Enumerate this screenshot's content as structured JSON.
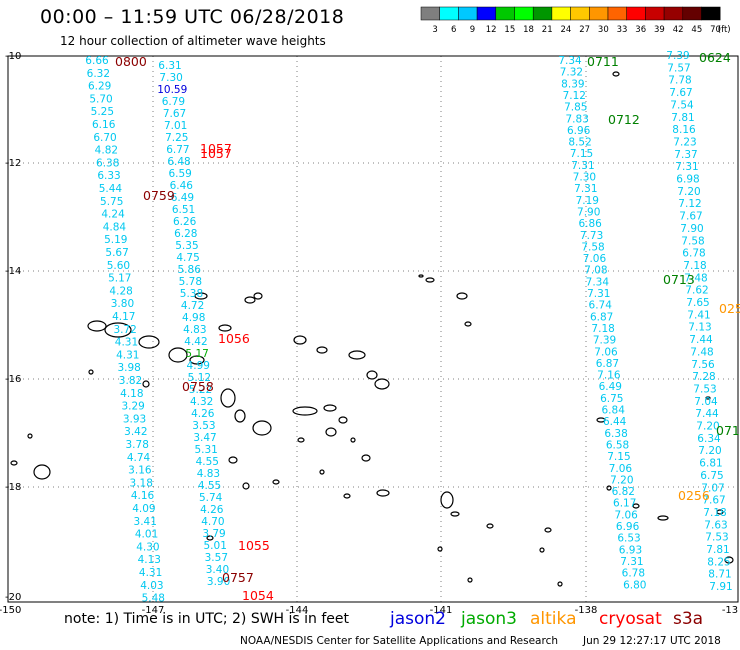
{
  "header": {
    "title": "00:00 – 11:59 UTC 06/28/2018",
    "subtitle": "12 hour collection of altimeter wave heights"
  },
  "colorbar": {
    "labels": [
      "3",
      "6",
      "9",
      "12",
      "15",
      "18",
      "21",
      "24",
      "27",
      "30",
      "33",
      "36",
      "39",
      "42",
      "45",
      "70",
      "(ft)"
    ],
    "colors": [
      "#7f7f7f",
      "#00ffff",
      "#00c8ff",
      "#0000ff",
      "#00c800",
      "#00ff00",
      "#009600",
      "#ffff00",
      "#ffc800",
      "#ff9600",
      "#ff6400",
      "#ff0000",
      "#c80000",
      "#960000",
      "#640000",
      "#000000"
    ]
  },
  "axes": {
    "lat_labels": [
      "-10",
      "-12",
      "-14",
      "-16",
      "-18",
      "-20"
    ],
    "lon_labels": [
      "-150",
      "-147",
      "-144",
      "-141",
      "-138",
      "-13"
    ]
  },
  "tracks": [
    {
      "name": "track-1",
      "color": "#00c8f0",
      "values": [
        "6.66",
        "6.32",
        "6.29",
        "5.70",
        "5.25",
        "6.16",
        "6.70",
        "4.82",
        "6.38",
        "6.33",
        "5.44",
        "5.75",
        "4.24",
        "4.84",
        "5.19",
        "5.67",
        "5.60",
        "5.17",
        "4.28",
        "3.80",
        "4.17",
        "3.72",
        "4.31",
        "4.31",
        "3.98",
        "3.82",
        "4.18",
        "3.29",
        "3.93",
        "3.42",
        "3.78",
        "4.74",
        "3.16",
        "3.18",
        "4.16",
        "4.09",
        "3.41",
        "4.01",
        "4.30",
        "4.13",
        "4.31",
        "4.03",
        "5.48"
      ]
    },
    {
      "name": "track-2",
      "color": "#00c8f0",
      "values": [
        "6.31",
        "7.30",
        "10.59",
        "6.79",
        "7.67",
        "7.01",
        "7.25",
        "6.77",
        "6.48",
        "6.59",
        "6.46",
        "6.49",
        "6.51",
        "6.26",
        "6.28",
        "5.35",
        "4.75",
        "5.86",
        "5.78",
        "5.38",
        "4.72",
        "4.98",
        "4.83",
        "4.42",
        "5.17",
        "4.99",
        "5.12",
        "5.22",
        "4.32",
        "4.26",
        "3.53",
        "3.47",
        "5.31",
        "4.55",
        "4.83",
        "4.55",
        "5.74",
        "4.26",
        "4.70",
        "3.79",
        "5.01",
        "3.57",
        "3.40",
        "3.90"
      ]
    },
    {
      "name": "track-3",
      "color": "#00c8f0",
      "values": [
        "7.34",
        "7.32",
        "8.39",
        "7.12",
        "7.85",
        "7.83",
        "6.96",
        "8.52",
        "7.15",
        "7.31",
        "7.30",
        "7.31",
        "7.19",
        "7.90",
        "6.86",
        "7.73",
        "7.58",
        "7.06",
        "7.08",
        "7.34",
        "7.31",
        "6.74",
        "6.87",
        "7.18",
        "7.39",
        "7.06",
        "6.87",
        "7.16",
        "6.49",
        "6.75",
        "6.84",
        "6.44",
        "6.38",
        "6.58",
        "7.15",
        "7.06",
        "7.20",
        "6.82",
        "6.17",
        "7.06",
        "6.96",
        "6.53",
        "6.93",
        "7.31",
        "6.78",
        "6.80"
      ]
    },
    {
      "name": "track-4",
      "color": "#00c8f0",
      "values": [
        "7.39",
        "7.57",
        "7.78",
        "7.67",
        "7.54",
        "7.81",
        "8.16",
        "7.23",
        "7.37",
        "7.31",
        "6.98",
        "7.20",
        "7.12",
        "7.67",
        "7.90",
        "7.58",
        "6.78",
        "7.18",
        "7.48",
        "7.62",
        "7.65",
        "7.41",
        "7.13",
        "7.44",
        "7.48",
        "7.56",
        "7.28",
        "7.53",
        "7.04",
        "7.44",
        "7.20",
        "6.34",
        "7.20",
        "6.81",
        "6.75",
        "7.07",
        "7.67",
        "7.18",
        "7.63",
        "7.53",
        "7.81",
        "8.25",
        "8.71",
        "7.91"
      ]
    }
  ],
  "time_labels": [
    {
      "text": "0800",
      "color": "#8b0000"
    },
    {
      "text": "0759",
      "color": "#8b0000"
    },
    {
      "text": "1057",
      "color": "#ff0000"
    },
    {
      "text": "1057",
      "color": "#ff0000"
    },
    {
      "text": "1056",
      "color": "#ff0000"
    },
    {
      "text": "0758",
      "color": "#8b0000"
    },
    {
      "text": "1055",
      "color": "#ff0000"
    },
    {
      "text": "0757",
      "color": "#8b0000"
    },
    {
      "text": "1054",
      "color": "#ff0000"
    },
    {
      "text": "0711",
      "color": "#008000"
    },
    {
      "text": "0712",
      "color": "#008000"
    },
    {
      "text": "0713",
      "color": "#008000"
    },
    {
      "text": "0624",
      "color": "#008000"
    },
    {
      "text": "071",
      "color": "#008000"
    },
    {
      "text": "025",
      "color": "#ff9600"
    },
    {
      "text": "0256",
      "color": "#ff9600"
    }
  ],
  "legend": {
    "note": "note: 1) Time is in UTC; 2) SWH is in feet",
    "satellites": [
      {
        "name": "jason2",
        "color": "#0000dd"
      },
      {
        "name": "jason3",
        "color": "#00aa00"
      },
      {
        "name": "altika",
        "color": "#ff9600"
      },
      {
        "name": "cryosat",
        "color": "#ff0000"
      },
      {
        "name": "s3a",
        "color": "#8b0000"
      }
    ]
  },
  "footer": {
    "credit": "NOAA/NESDIS Center for Satellite Applications and Research",
    "timestamp": "Jun 29 12:27:17 UTC 2018"
  }
}
